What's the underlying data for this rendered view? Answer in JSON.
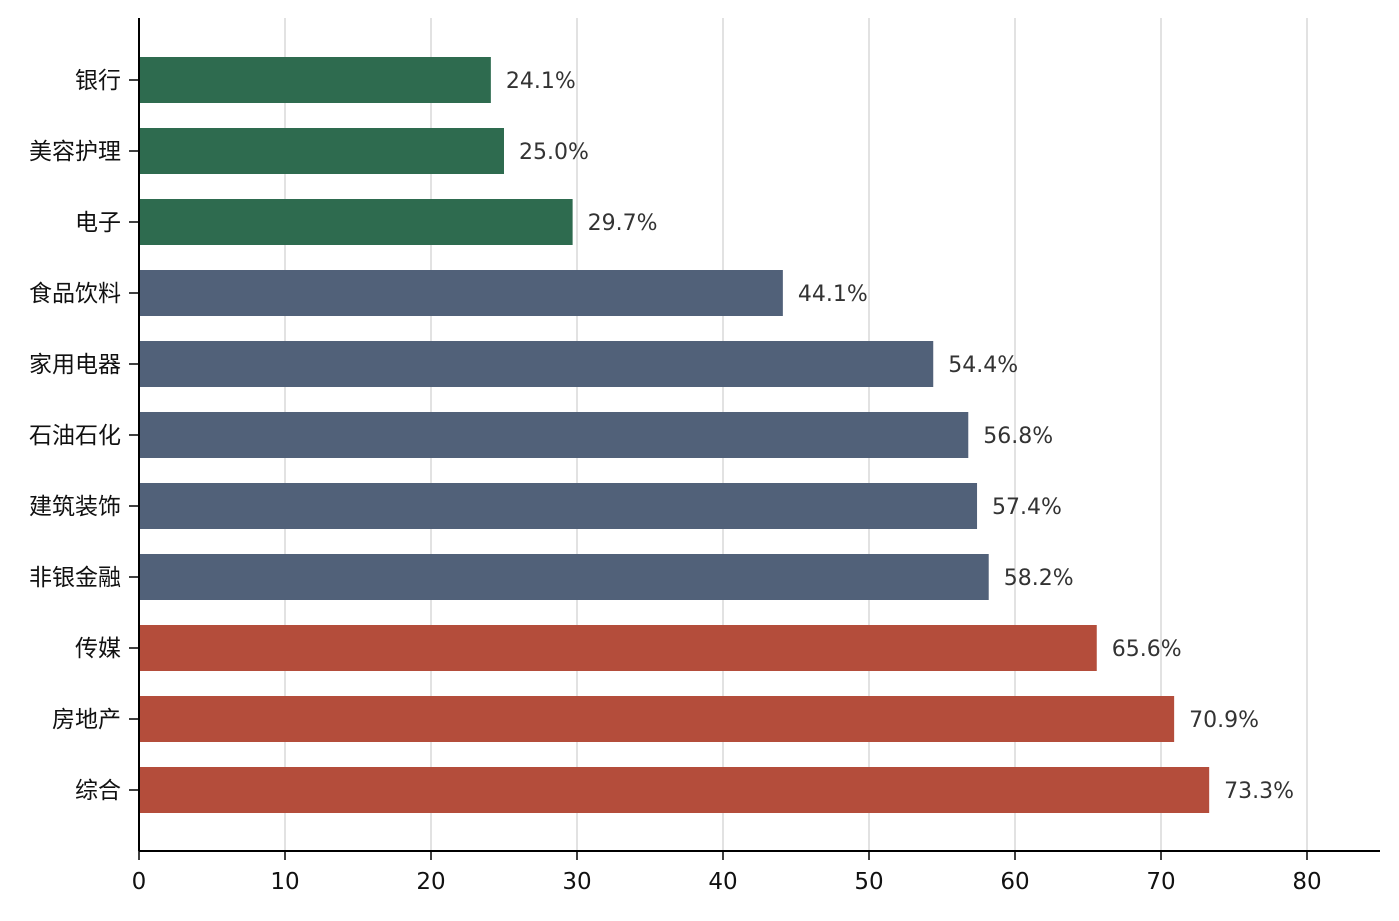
{
  "chart_data": {
    "type": "bar",
    "orientation": "horizontal",
    "categories": [
      "银行",
      "美容护理",
      "电子",
      "食品饮料",
      "家用电器",
      "石油石化",
      "建筑装饰",
      "非银金融",
      "传媒",
      "房地产",
      "综合"
    ],
    "values": [
      24.1,
      25.0,
      29.7,
      44.1,
      54.4,
      56.8,
      57.4,
      58.2,
      65.6,
      70.9,
      73.3
    ],
    "data_labels": [
      "24.1%",
      "25.0%",
      "29.7%",
      "44.1%",
      "54.4%",
      "56.8%",
      "57.4%",
      "58.2%",
      "65.6%",
      "70.9%",
      "73.3%"
    ],
    "bar_colors": [
      "#2e6b4f",
      "#2e6b4f",
      "#2e6b4f",
      "#516179",
      "#516179",
      "#516179",
      "#516179",
      "#516179",
      "#b44d3b",
      "#b44d3b",
      "#b44d3b"
    ],
    "xlim": [
      0,
      85
    ],
    "xticks": [
      0,
      10,
      20,
      30,
      40,
      50,
      60,
      70,
      80
    ],
    "xtick_labels": [
      "0",
      "10",
      "20",
      "30",
      "40",
      "50",
      "60",
      "70",
      "80"
    ],
    "grid": "vertical",
    "title": "",
    "xlabel": "",
    "ylabel": ""
  },
  "colors": {
    "gridline": "#d9d9d9",
    "axis": "#000000"
  }
}
